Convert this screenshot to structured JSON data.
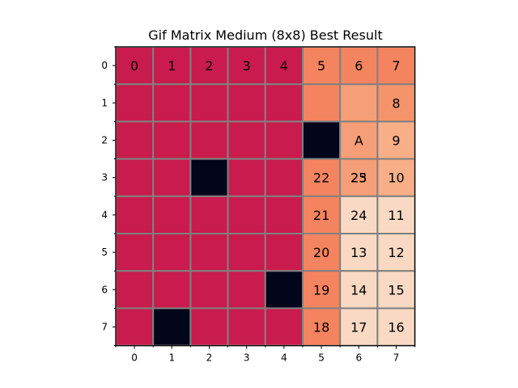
{
  "chart_data": {
    "type": "heatmap",
    "title": "Gif Matrix Medium (8x8) Best Result",
    "xlabel": "",
    "ylabel": "",
    "x_ticks": [
      "0",
      "1",
      "2",
      "3",
      "4",
      "5",
      "6",
      "7"
    ],
    "y_ticks": [
      "0",
      "1",
      "2",
      "3",
      "4",
      "5",
      "6",
      "7"
    ],
    "grid": true,
    "legend": "none",
    "color_legend": {
      "red": "#c91b4d",
      "black": "#03051a",
      "orange": "#f4845f",
      "orange_light": "#f5946b",
      "salmon": "#f69e77",
      "peach": "#f8ae87",
      "peach_light": "#f8bf9e",
      "cream": "#f9d9c3",
      "grid_line": "#808080"
    },
    "cells": [
      [
        "red",
        "red",
        "red",
        "red",
        "red",
        "orange",
        "orange",
        "orange"
      ],
      [
        "red",
        "red",
        "red",
        "red",
        "red",
        "orange",
        "salmon",
        "orange_light"
      ],
      [
        "red",
        "red",
        "red",
        "red",
        "red",
        "black",
        "salmon",
        "peach"
      ],
      [
        "red",
        "red",
        "black",
        "red",
        "red",
        "orange",
        "salmon",
        "peach"
      ],
      [
        "red",
        "red",
        "red",
        "red",
        "red",
        "orange",
        "cream",
        "cream"
      ],
      [
        "red",
        "red",
        "red",
        "red",
        "red",
        "orange",
        "cream",
        "cream"
      ],
      [
        "red",
        "red",
        "red",
        "red",
        "black",
        "orange",
        "cream",
        "cream"
      ],
      [
        "red",
        "black",
        "red",
        "red",
        "red",
        "orange",
        "cream",
        "cream"
      ]
    ],
    "labels": [
      [
        "0",
        "1",
        "2",
        "3",
        "4",
        "5",
        "6",
        "7"
      ],
      [
        "",
        "",
        "",
        "",
        "",
        "",
        "",
        "8"
      ],
      [
        "",
        "",
        "",
        "",
        "",
        "",
        "A",
        "9"
      ],
      [
        "",
        "",
        "",
        "",
        "",
        "22",
        "25",
        "10"
      ],
      [
        "",
        "",
        "",
        "",
        "",
        "21",
        "24",
        "11"
      ],
      [
        "",
        "",
        "",
        "",
        "",
        "20",
        "13",
        "12"
      ],
      [
        "",
        "",
        "",
        "",
        "",
        "19",
        "14",
        "15"
      ],
      [
        "",
        "",
        "",
        "",
        "",
        "18",
        "17",
        "16"
      ]
    ],
    "overlay_labels": [
      {
        "row": 3,
        "col": 6,
        "text": "23"
      }
    ]
  }
}
